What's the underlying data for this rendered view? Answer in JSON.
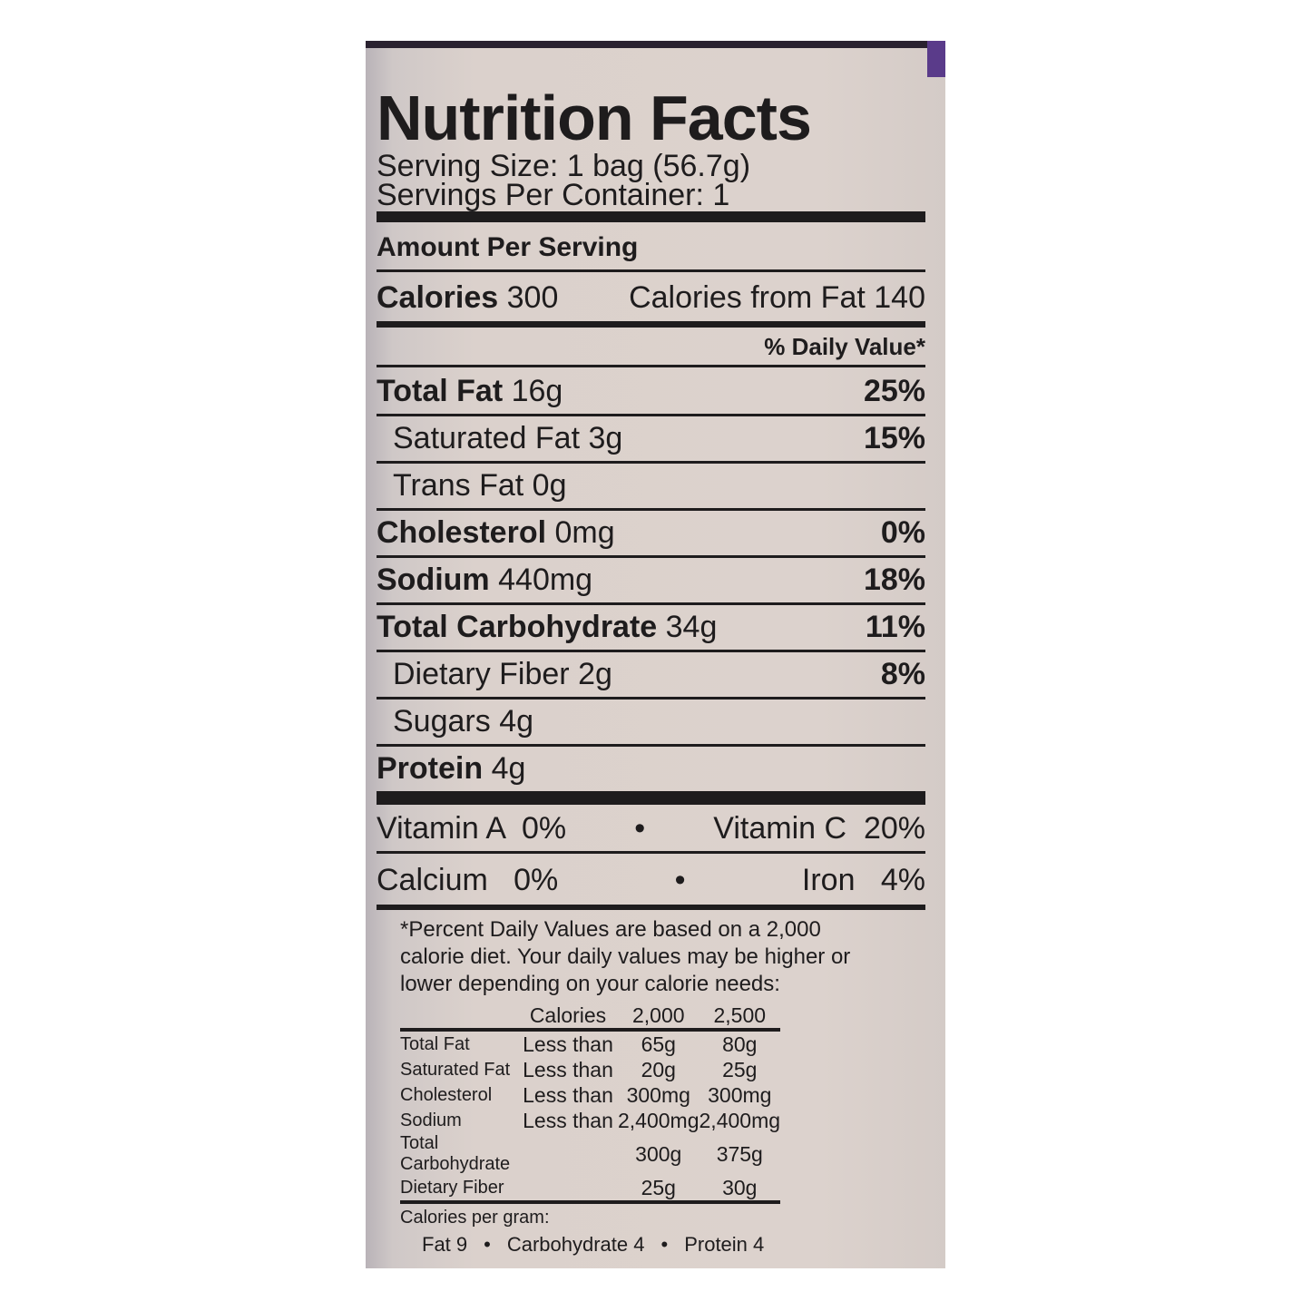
{
  "title": "Nutrition Facts",
  "serving_size": "Serving Size: 1 bag (56.7g)",
  "servings_per_container": "Servings Per Container: 1",
  "amount_per_serving": "Amount Per Serving",
  "calories": {
    "label": "Calories",
    "value": "300",
    "from_fat_label": "Calories from Fat",
    "from_fat_value": "140"
  },
  "daily_value_header": "% Daily Value*",
  "nutrients": [
    {
      "name": "Total Fat",
      "amount": "16g",
      "dv": "25%",
      "bold": true
    },
    {
      "name": "Saturated Fat",
      "amount": "3g",
      "dv": "15%",
      "bold": false
    },
    {
      "name": "Trans Fat",
      "amount": "0g",
      "dv": "",
      "bold": false
    },
    {
      "name": "Cholesterol",
      "amount": "0mg",
      "dv": "0%",
      "bold": true
    },
    {
      "name": "Sodium",
      "amount": "440mg",
      "dv": "18%",
      "bold": true
    },
    {
      "name": "Total Carbohydrate",
      "amount": "34g",
      "dv": "11%",
      "bold": true
    },
    {
      "name": "Dietary Fiber",
      "amount": "2g",
      "dv": "8%",
      "bold": false
    },
    {
      "name": "Sugars",
      "amount": "4g",
      "dv": "",
      "bold": false
    },
    {
      "name": "Protein",
      "amount": "4g",
      "dv": "",
      "bold": true
    }
  ],
  "vitamins": [
    {
      "left": "Vitamin A  0%",
      "right": "Vitamin C  20%"
    },
    {
      "left": "Calcium   0%",
      "right": "Iron   4%"
    }
  ],
  "bullet": "•",
  "footnote": [
    "*Percent Daily Values are based on a 2,000",
    "calorie diet. Your daily values may be higher or",
    "lower depending on your calorie needs:"
  ],
  "dv_table": {
    "headers": [
      "",
      "Calories",
      "2,000",
      "2,500"
    ],
    "rows": [
      [
        "Total Fat",
        "Less than",
        "65g",
        "80g"
      ],
      [
        "Saturated Fat",
        "Less than",
        "20g",
        "25g"
      ],
      [
        "Cholesterol",
        "Less than",
        "300mg",
        "300mg"
      ],
      [
        "Sodium",
        "Less than",
        "2,400mg",
        "2,400mg"
      ],
      [
        "Total Carbohydrate",
        "",
        "300g",
        "375g"
      ],
      [
        "Dietary Fiber",
        "",
        "25g",
        "30g"
      ]
    ]
  },
  "calories_per_gram": {
    "label": "Calories per gram:",
    "fat": "Fat 9",
    "carbohydrate": "Carbohydrate 4",
    "protein": "Protein 4"
  }
}
